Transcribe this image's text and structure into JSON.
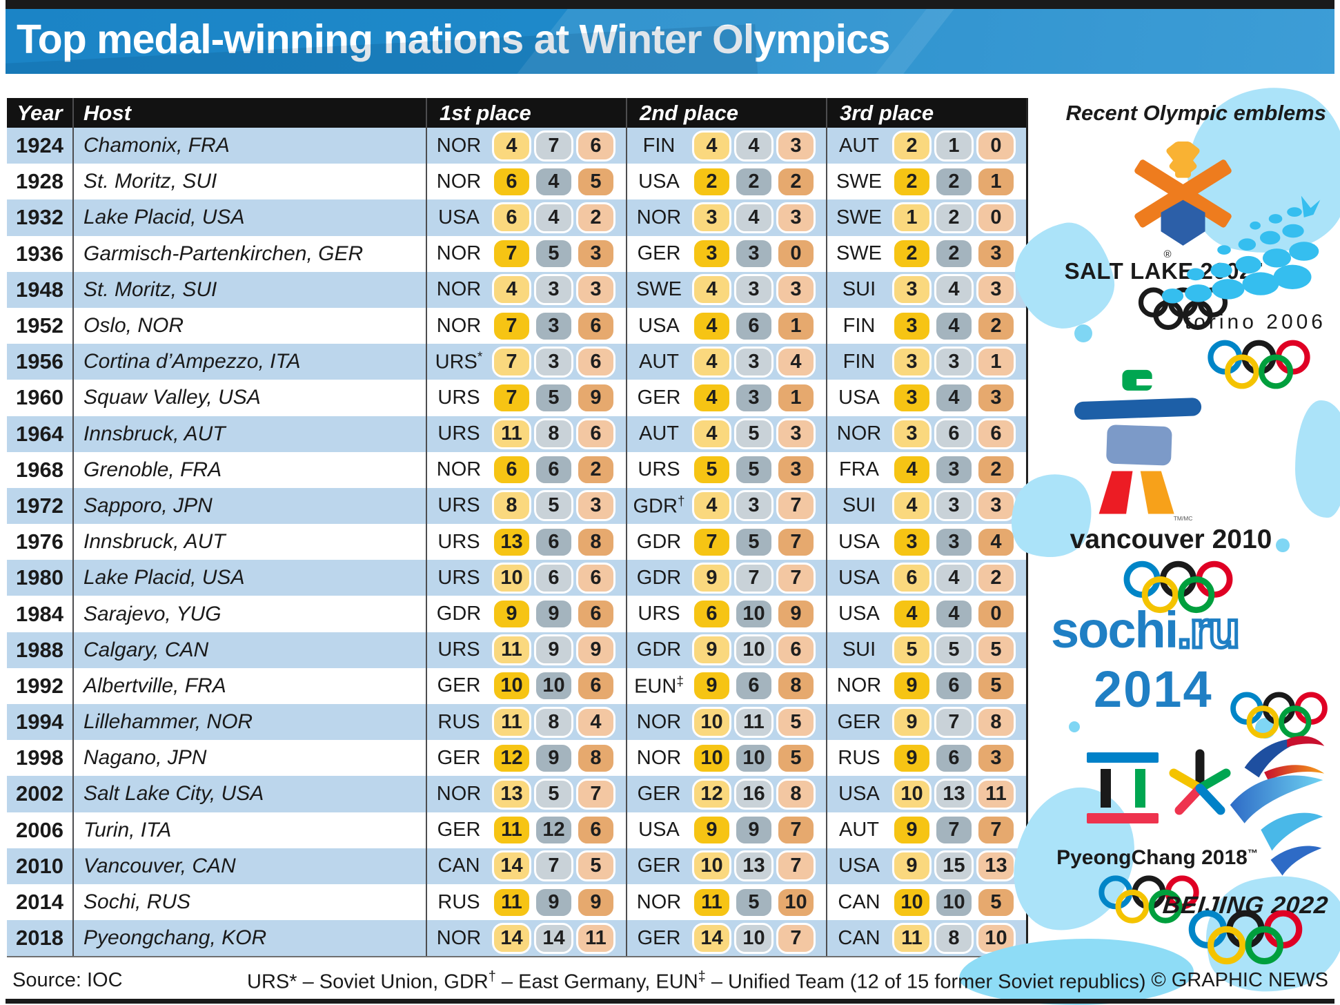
{
  "title": "Top medal-winning nations at Winter Olympics",
  "table": {
    "headers": {
      "year": "Year",
      "host": "Host",
      "first": "1st place",
      "second": "2nd place",
      "third": "3rd place"
    },
    "rows": [
      {
        "year": "1924",
        "host": "Chamonix, FRA",
        "first": {
          "code": "NOR",
          "sup": "",
          "gold": 4,
          "silver": 7,
          "bronze": 6
        },
        "second": {
          "code": "FIN",
          "sup": "",
          "gold": 4,
          "silver": 4,
          "bronze": 3
        },
        "third": {
          "code": "AUT",
          "sup": "",
          "gold": 2,
          "silver": 1,
          "bronze": 0
        }
      },
      {
        "year": "1928",
        "host": "St. Moritz, SUI",
        "first": {
          "code": "NOR",
          "sup": "",
          "gold": 6,
          "silver": 4,
          "bronze": 5
        },
        "second": {
          "code": "USA",
          "sup": "",
          "gold": 2,
          "silver": 2,
          "bronze": 2
        },
        "third": {
          "code": "SWE",
          "sup": "",
          "gold": 2,
          "silver": 2,
          "bronze": 1
        }
      },
      {
        "year": "1932",
        "host": "Lake Placid, USA",
        "first": {
          "code": "USA",
          "sup": "",
          "gold": 6,
          "silver": 4,
          "bronze": 2
        },
        "second": {
          "code": "NOR",
          "sup": "",
          "gold": 3,
          "silver": 4,
          "bronze": 3
        },
        "third": {
          "code": "SWE",
          "sup": "",
          "gold": 1,
          "silver": 2,
          "bronze": 0
        }
      },
      {
        "year": "1936",
        "host": "Garmisch-Partenkirchen, GER",
        "first": {
          "code": "NOR",
          "sup": "",
          "gold": 7,
          "silver": 5,
          "bronze": 3
        },
        "second": {
          "code": "GER",
          "sup": "",
          "gold": 3,
          "silver": 3,
          "bronze": 0
        },
        "third": {
          "code": "SWE",
          "sup": "",
          "gold": 2,
          "silver": 2,
          "bronze": 3
        }
      },
      {
        "year": "1948",
        "host": "St. Moritz, SUI",
        "first": {
          "code": "NOR",
          "sup": "",
          "gold": 4,
          "silver": 3,
          "bronze": 3
        },
        "second": {
          "code": "SWE",
          "sup": "",
          "gold": 4,
          "silver": 3,
          "bronze": 3
        },
        "third": {
          "code": "SUI",
          "sup": "",
          "gold": 3,
          "silver": 4,
          "bronze": 3
        }
      },
      {
        "year": "1952",
        "host": "Oslo, NOR",
        "first": {
          "code": "NOR",
          "sup": "",
          "gold": 7,
          "silver": 3,
          "bronze": 6
        },
        "second": {
          "code": "USA",
          "sup": "",
          "gold": 4,
          "silver": 6,
          "bronze": 1
        },
        "third": {
          "code": "FIN",
          "sup": "",
          "gold": 3,
          "silver": 4,
          "bronze": 2
        }
      },
      {
        "year": "1956",
        "host": "Cortina d’Ampezzo, ITA",
        "first": {
          "code": "URS",
          "sup": "*",
          "gold": 7,
          "silver": 3,
          "bronze": 6
        },
        "second": {
          "code": "AUT",
          "sup": "",
          "gold": 4,
          "silver": 3,
          "bronze": 4
        },
        "third": {
          "code": "FIN",
          "sup": "",
          "gold": 3,
          "silver": 3,
          "bronze": 1
        }
      },
      {
        "year": "1960",
        "host": "Squaw Valley, USA",
        "first": {
          "code": "URS",
          "sup": "",
          "gold": 7,
          "silver": 5,
          "bronze": 9
        },
        "second": {
          "code": "GER",
          "sup": "",
          "gold": 4,
          "silver": 3,
          "bronze": 1
        },
        "third": {
          "code": "USA",
          "sup": "",
          "gold": 3,
          "silver": 4,
          "bronze": 3
        }
      },
      {
        "year": "1964",
        "host": "Innsbruck, AUT",
        "first": {
          "code": "URS",
          "sup": "",
          "gold": 11,
          "silver": 8,
          "bronze": 6
        },
        "second": {
          "code": "AUT",
          "sup": "",
          "gold": 4,
          "silver": 5,
          "bronze": 3
        },
        "third": {
          "code": "NOR",
          "sup": "",
          "gold": 3,
          "silver": 6,
          "bronze": 6
        }
      },
      {
        "year": "1968",
        "host": "Grenoble, FRA",
        "first": {
          "code": "NOR",
          "sup": "",
          "gold": 6,
          "silver": 6,
          "bronze": 2
        },
        "second": {
          "code": "URS",
          "sup": "",
          "gold": 5,
          "silver": 5,
          "bronze": 3
        },
        "third": {
          "code": "FRA",
          "sup": "",
          "gold": 4,
          "silver": 3,
          "bronze": 2
        }
      },
      {
        "year": "1972",
        "host": "Sapporo, JPN",
        "first": {
          "code": "URS",
          "sup": "",
          "gold": 8,
          "silver": 5,
          "bronze": 3
        },
        "second": {
          "code": "GDR",
          "sup": "†",
          "gold": 4,
          "silver": 3,
          "bronze": 7
        },
        "third": {
          "code": "SUI",
          "sup": "",
          "gold": 4,
          "silver": 3,
          "bronze": 3
        }
      },
      {
        "year": "1976",
        "host": "Innsbruck, AUT",
        "first": {
          "code": "URS",
          "sup": "",
          "gold": 13,
          "silver": 6,
          "bronze": 8
        },
        "second": {
          "code": "GDR",
          "sup": "",
          "gold": 7,
          "silver": 5,
          "bronze": 7
        },
        "third": {
          "code": "USA",
          "sup": "",
          "gold": 3,
          "silver": 3,
          "bronze": 4
        }
      },
      {
        "year": "1980",
        "host": "Lake Placid, USA",
        "first": {
          "code": "URS",
          "sup": "",
          "gold": 10,
          "silver": 6,
          "bronze": 6
        },
        "second": {
          "code": "GDR",
          "sup": "",
          "gold": 9,
          "silver": 7,
          "bronze": 7
        },
        "third": {
          "code": "USA",
          "sup": "",
          "gold": 6,
          "silver": 4,
          "bronze": 2
        }
      },
      {
        "year": "1984",
        "host": "Sarajevo, YUG",
        "first": {
          "code": "GDR",
          "sup": "",
          "gold": 9,
          "silver": 9,
          "bronze": 6
        },
        "second": {
          "code": "URS",
          "sup": "",
          "gold": 6,
          "silver": 10,
          "bronze": 9
        },
        "third": {
          "code": "USA",
          "sup": "",
          "gold": 4,
          "silver": 4,
          "bronze": 0
        }
      },
      {
        "year": "1988",
        "host": "Calgary, CAN",
        "first": {
          "code": "URS",
          "sup": "",
          "gold": 11,
          "silver": 9,
          "bronze": 9
        },
        "second": {
          "code": "GDR",
          "sup": "",
          "gold": 9,
          "silver": 10,
          "bronze": 6
        },
        "third": {
          "code": "SUI",
          "sup": "",
          "gold": 5,
          "silver": 5,
          "bronze": 5
        }
      },
      {
        "year": "1992",
        "host": "Albertville, FRA",
        "first": {
          "code": "GER",
          "sup": "",
          "gold": 10,
          "silver": 10,
          "bronze": 6
        },
        "second": {
          "code": "EUN",
          "sup": "‡",
          "gold": 9,
          "silver": 6,
          "bronze": 8
        },
        "third": {
          "code": "NOR",
          "sup": "",
          "gold": 9,
          "silver": 6,
          "bronze": 5
        }
      },
      {
        "year": "1994",
        "host": "Lillehammer, NOR",
        "first": {
          "code": "RUS",
          "sup": "",
          "gold": 11,
          "silver": 8,
          "bronze": 4
        },
        "second": {
          "code": "NOR",
          "sup": "",
          "gold": 10,
          "silver": 11,
          "bronze": 5
        },
        "third": {
          "code": "GER",
          "sup": "",
          "gold": 9,
          "silver": 7,
          "bronze": 8
        }
      },
      {
        "year": "1998",
        "host": "Nagano, JPN",
        "first": {
          "code": "GER",
          "sup": "",
          "gold": 12,
          "silver": 9,
          "bronze": 8
        },
        "second": {
          "code": "NOR",
          "sup": "",
          "gold": 10,
          "silver": 10,
          "bronze": 5
        },
        "third": {
          "code": "RUS",
          "sup": "",
          "gold": 9,
          "silver": 6,
          "bronze": 3
        }
      },
      {
        "year": "2002",
        "host": "Salt Lake City, USA",
        "first": {
          "code": "NOR",
          "sup": "",
          "gold": 13,
          "silver": 5,
          "bronze": 7
        },
        "second": {
          "code": "GER",
          "sup": "",
          "gold": 12,
          "silver": 16,
          "bronze": 8
        },
        "third": {
          "code": "USA",
          "sup": "",
          "gold": 10,
          "silver": 13,
          "bronze": 11
        }
      },
      {
        "year": "2006",
        "host": "Turin, ITA",
        "first": {
          "code": "GER",
          "sup": "",
          "gold": 11,
          "silver": 12,
          "bronze": 6
        },
        "second": {
          "code": "USA",
          "sup": "",
          "gold": 9,
          "silver": 9,
          "bronze": 7
        },
        "third": {
          "code": "AUT",
          "sup": "",
          "gold": 9,
          "silver": 7,
          "bronze": 7
        }
      },
      {
        "year": "2010",
        "host": "Vancouver, CAN",
        "first": {
          "code": "CAN",
          "sup": "",
          "gold": 14,
          "silver": 7,
          "bronze": 5
        },
        "second": {
          "code": "GER",
          "sup": "",
          "gold": 10,
          "silver": 13,
          "bronze": 7
        },
        "third": {
          "code": "USA",
          "sup": "",
          "gold": 9,
          "silver": 15,
          "bronze": 13
        }
      },
      {
        "year": "2014",
        "host": "Sochi, RUS",
        "first": {
          "code": "RUS",
          "sup": "",
          "gold": 11,
          "silver": 9,
          "bronze": 9
        },
        "second": {
          "code": "NOR",
          "sup": "",
          "gold": 11,
          "silver": 5,
          "bronze": 10
        },
        "third": {
          "code": "CAN",
          "sup": "",
          "gold": 10,
          "silver": 10,
          "bronze": 5
        }
      },
      {
        "year": "2018",
        "host": "Pyeongchang, KOR",
        "first": {
          "code": "NOR",
          "sup": "",
          "gold": 14,
          "silver": 14,
          "bronze": 11
        },
        "second": {
          "code": "GER",
          "sup": "",
          "gold": 14,
          "silver": 10,
          "bronze": 7
        },
        "third": {
          "code": "CAN",
          "sup": "",
          "gold": 11,
          "silver": 8,
          "bronze": 10
        }
      }
    ]
  },
  "sidebar": {
    "heading": "Recent Olympic emblems",
    "emblems": [
      {
        "label": "SALT LAKE 2002",
        "tm": "™",
        "reg": "®"
      },
      {
        "label": "torino 2006"
      },
      {
        "label": "vancouver 2010",
        "tm": "TM/MC"
      },
      {
        "label": "sochi",
        "label_ru": ".ru",
        "label2": "2014"
      },
      {
        "label": "PyeongChang 2018",
        "tm": "™"
      },
      {
        "label": "BEIJING 2022"
      }
    ]
  },
  "footer": {
    "source": "Source: IOC",
    "legend_segments": [
      {
        "text": "URS* – Soviet Union, GDR"
      },
      {
        "sup": "†"
      },
      {
        "text": " – East Germany, EUN"
      },
      {
        "sup": "‡"
      },
      {
        "text": " – Unified Team (12 of 15 former Soviet republics)"
      }
    ],
    "credit": "© GRAPHIC NEWS"
  },
  "colors": {
    "banner_blue": "#1f8bcb",
    "header_black": "#121212",
    "row_blue": "#bcd6ec",
    "gold": "#f6c414",
    "silver": "#a4b4be",
    "bronze": "#e6a96e",
    "gold_pale": "#fad87e",
    "silver_pale": "#c9d2d8",
    "bronze_pale": "#f3c7a2",
    "splash_cyan": "#abe3f9",
    "sochi_blue": "#1f7fc4",
    "rings": {
      "blue": "#0085C7",
      "black": "#1a1a1a",
      "red": "#DF0024",
      "yellow": "#F4C300",
      "green": "#009F3D"
    }
  }
}
